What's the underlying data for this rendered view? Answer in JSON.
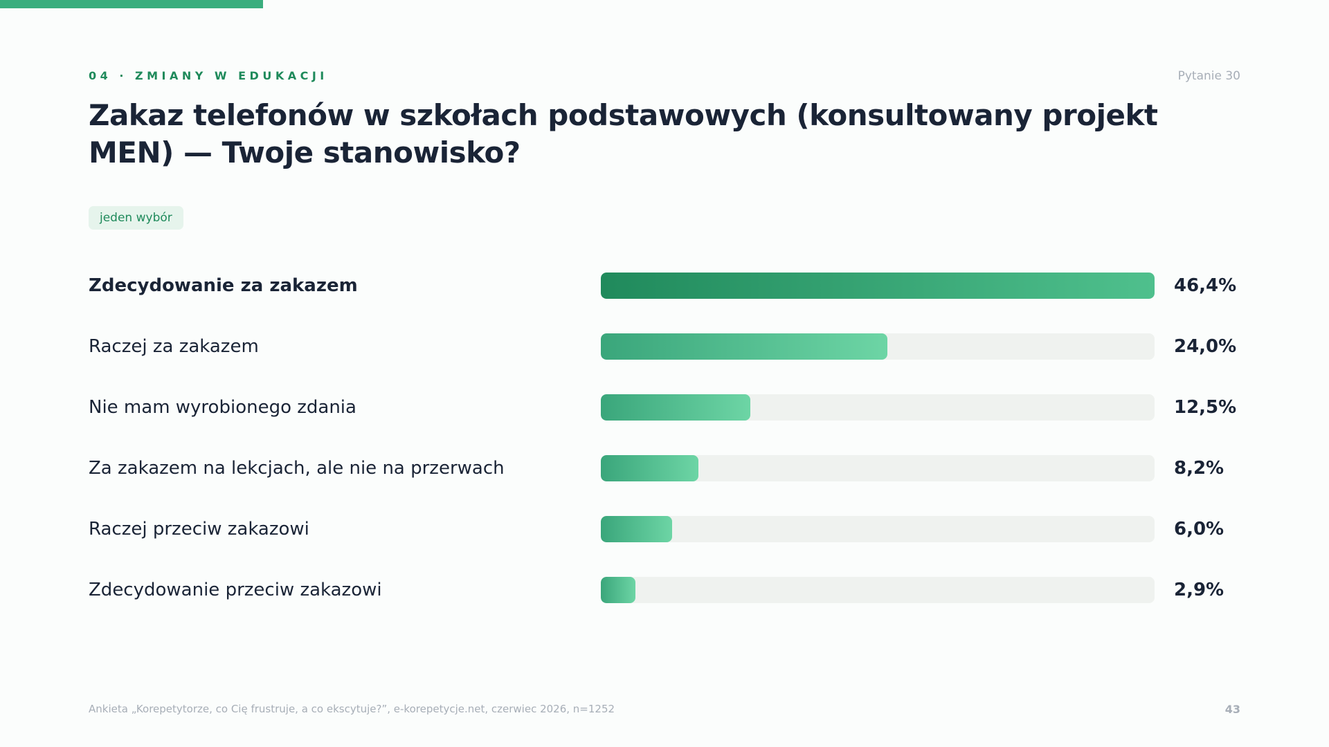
{
  "section": "04 · ZMIANY W EDUKACJI",
  "question_number": "Pytanie 30",
  "badge": "jeden wybór",
  "footer": "Ankieta „Korepetytorze, co Cię frustruje, a co ekscytuje?”, e-korepetycje.net, czerwiec 2026, n=1252",
  "page_number": "43",
  "colors": {
    "accent": "#3aae7e",
    "accent_dark": "#1f8a5b",
    "text": "#1a2436",
    "muted": "#a7aeb7",
    "track": "#eff2ef"
  },
  "chart_data": {
    "type": "bar",
    "orientation": "horizontal",
    "title": "Zakaz telefonów w szkołach podstawowych (konsultowany projekt MEN) — Twoje stanowisko?",
    "categories": [
      "Zdecydowanie za zakazem",
      "Raczej za zakazem",
      "Nie mam wyrobionego zdania",
      "Za zakazem na lekcjach, ale nie na przerwach",
      "Raczej przeciw zakazowi",
      "Zdecydowanie przeciw zakazowi"
    ],
    "values": [
      46.4,
      24.0,
      12.5,
      8.2,
      6.0,
      2.9
    ],
    "value_labels": [
      "46,4%",
      "24,0%",
      "12,5%",
      "8,2%",
      "6,0%",
      "2,9%"
    ],
    "unit": "%",
    "scale_max": 46.4,
    "grid": false
  }
}
